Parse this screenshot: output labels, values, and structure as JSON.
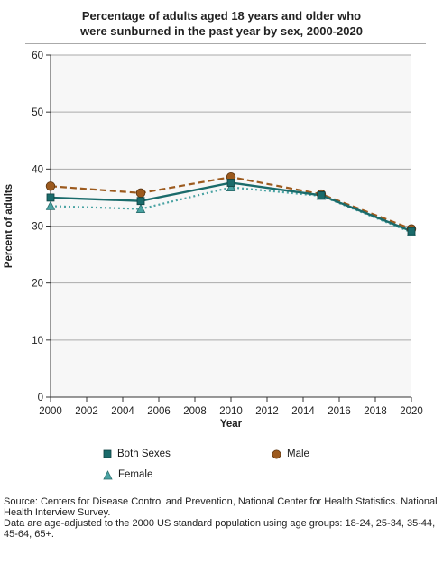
{
  "title_line1": "Percentage of adults aged 18 years and older who",
  "title_line2": "were sunburned in the past year by sex, 2000-2020",
  "chart_data": {
    "type": "line",
    "title": "Percentage of adults aged 18 years and older who were sunburned in the past year by sex, 2000-2020",
    "xlabel": "Year",
    "ylabel": "Percent of adults",
    "xlim": [
      2000,
      2020
    ],
    "ylim": [
      0,
      60
    ],
    "x_ticks": [
      2000,
      2002,
      2004,
      2006,
      2008,
      2010,
      2012,
      2014,
      2016,
      2018,
      2020
    ],
    "y_ticks": [
      0,
      10,
      20,
      30,
      40,
      50,
      60
    ],
    "grid": "horizontal",
    "legend_position": "bottom",
    "x": [
      2000,
      2005,
      2010,
      2015,
      2020
    ],
    "series": [
      {
        "name": "Both Sexes",
        "values": [
          35.0,
          34.4,
          37.6,
          35.4,
          29.1
        ],
        "color": "#1a6b6b",
        "marker": "square",
        "line": "solid"
      },
      {
        "name": "Male",
        "values": [
          37.0,
          35.8,
          38.6,
          35.6,
          29.5
        ],
        "color": "#9c5a1e",
        "marker": "circle",
        "line": "dashed"
      },
      {
        "name": "Female",
        "values": [
          33.5,
          33.0,
          36.8,
          35.3,
          28.9
        ],
        "color": "#4aa3a3",
        "marker": "triangle",
        "line": "dotted"
      }
    ]
  },
  "legend": {
    "both": "Both Sexes",
    "male": "Male",
    "female": "Female"
  },
  "source": {
    "line1": "Source: Centers for Disease Control and Prevention, National Center for Health Statistics. National Health Interview Survey.",
    "line2": "Data are age-adjusted to the 2000 US standard population using age groups: 18-24, 25-34, 35-44, 45-64, 65+."
  }
}
